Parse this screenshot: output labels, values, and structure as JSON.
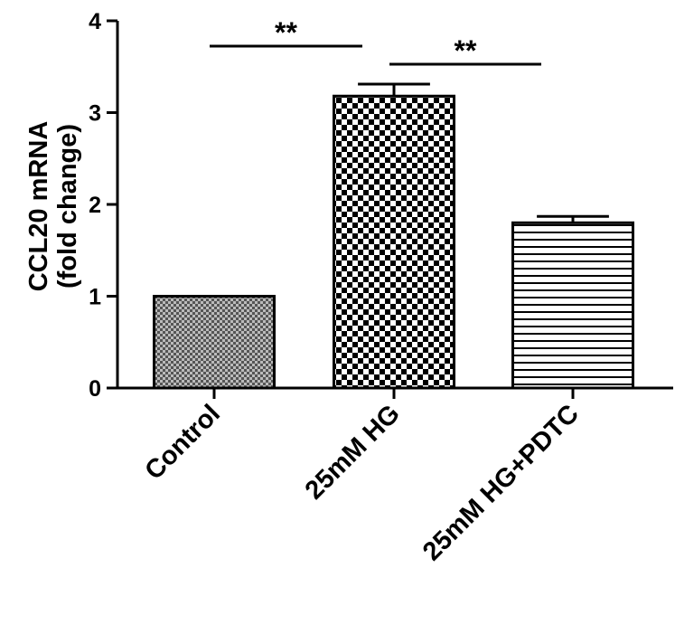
{
  "chart_data": {
    "type": "bar",
    "categories": [
      "Control",
      "25mM HG",
      "25mM HG+PDTC"
    ],
    "values": [
      1.0,
      3.18,
      1.8
    ],
    "error": [
      0.0,
      0.13,
      0.07
    ],
    "patterns": [
      "fine-crosshatch",
      "checkerboard",
      "horizontal-stripes"
    ],
    "ylabel_line1": "CCL20 mRNA",
    "ylabel_line2": "(fold change)",
    "ylim": [
      0,
      4
    ],
    "yticks": [
      0,
      1,
      2,
      3,
      4
    ],
    "grid": false,
    "significance": [
      {
        "from": 0,
        "to": 1,
        "label": "**"
      },
      {
        "from": 1,
        "to": 2,
        "label": "**"
      }
    ],
    "colors": {
      "axis": "#000000",
      "bar_stroke": "#000000",
      "background": "#ffffff"
    }
  }
}
